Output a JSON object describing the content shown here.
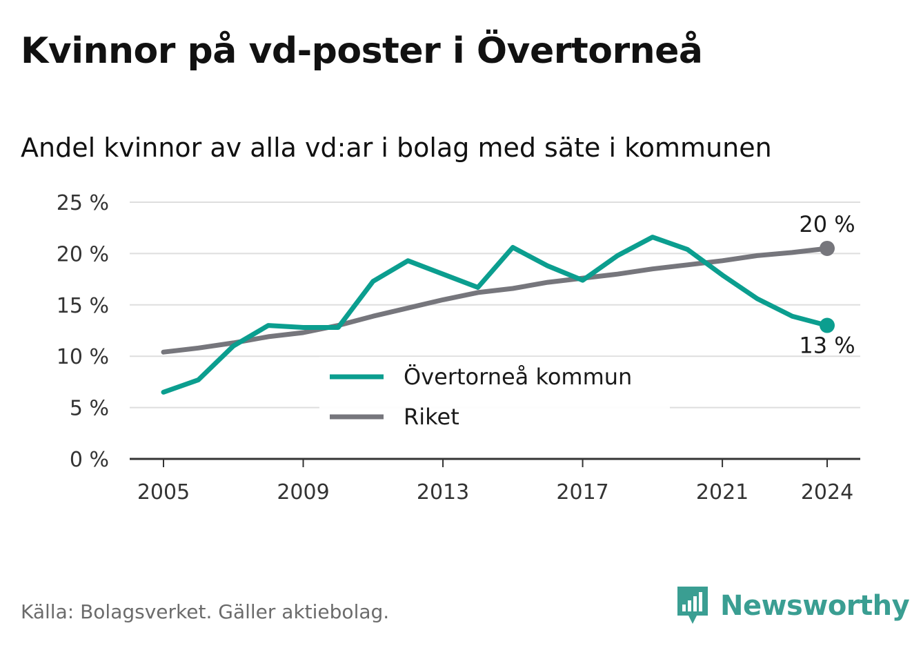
{
  "title": "Kvinnor på vd-poster i Övertorneå",
  "subtitle": "Andel kvinnor av alla vd:ar i bolag med säte i kommunen",
  "source": "Källa: Bolagsverket. Gäller aktiebolag.",
  "brand": {
    "name": "Newsworthy",
    "icon": "newsworthy-logo-icon",
    "color": "#3a9e92"
  },
  "chart_data": {
    "type": "line",
    "x": [
      2005,
      2006,
      2007,
      2008,
      2009,
      2010,
      2011,
      2012,
      2013,
      2014,
      2015,
      2016,
      2017,
      2018,
      2019,
      2020,
      2021,
      2022,
      2023,
      2024
    ],
    "x_ticks": [
      "2005",
      "2009",
      "2013",
      "2017",
      "2021",
      "2024"
    ],
    "y_ticks": [
      "0 %",
      "5 %",
      "10 %",
      "15 %",
      "20 %",
      "25 %"
    ],
    "ylim": [
      0,
      25
    ],
    "grid": true,
    "legend_position": "center",
    "series": [
      {
        "name": "Övertorneå kommun",
        "color": "#0b9e8f",
        "values": [
          6.5,
          7.7,
          11.0,
          13.0,
          12.8,
          12.8,
          17.3,
          19.3,
          18.0,
          16.7,
          20.6,
          18.8,
          17.4,
          19.8,
          21.6,
          20.4,
          17.9,
          15.6,
          13.9,
          13.0
        ],
        "end_label": "13 %"
      },
      {
        "name": "Riket",
        "color": "#76767c",
        "values": [
          10.4,
          10.8,
          11.3,
          11.9,
          12.3,
          13.0,
          13.9,
          14.7,
          15.5,
          16.2,
          16.6,
          17.2,
          17.6,
          18.0,
          18.5,
          18.9,
          19.3,
          19.8,
          20.1,
          20.5
        ],
        "end_label": "20 %"
      }
    ]
  }
}
